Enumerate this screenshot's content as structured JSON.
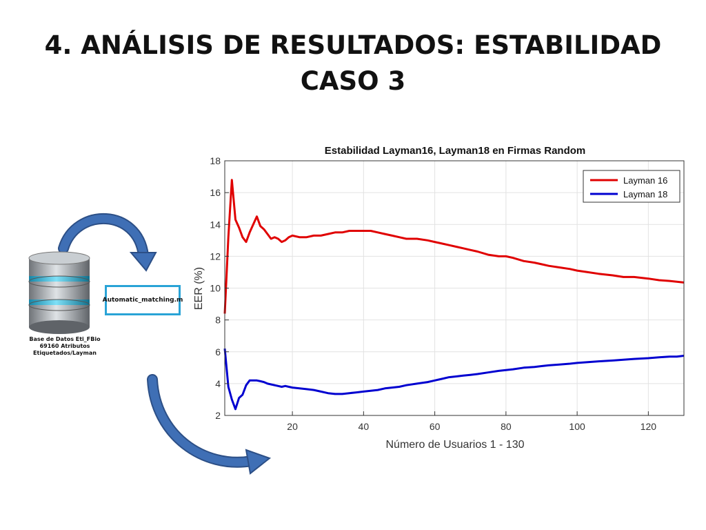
{
  "slide": {
    "title_line1": "4. ANÁLISIS DE RESULTADOS: ESTABILIDAD",
    "title_line2": "CASO 3"
  },
  "diagram": {
    "database_icon": "database-icon",
    "database_label_lines": [
      "Base de Datos Eti_FBio",
      "69160 Atributos",
      "Etiquetados/Layman"
    ],
    "script_box_label": "Automatic_matching.m",
    "arrow_color": "#3f6fb5",
    "box_border_color": "#29a3d6"
  },
  "chart_data": {
    "type": "line",
    "title": "Estabilidad Layman16, Layman18 en Firmas Random",
    "xlabel": "Número de Usuarios 1 - 130",
    "ylabel": "EER (%)",
    "xlim": [
      1,
      130
    ],
    "ylim": [
      2,
      18
    ],
    "xticks": [
      20,
      40,
      60,
      80,
      100,
      120
    ],
    "yticks": [
      2,
      4,
      6,
      8,
      10,
      12,
      14,
      16,
      18
    ],
    "grid": true,
    "legend_position": "top-right",
    "series": [
      {
        "name": "Layman 16",
        "color": "#e00000",
        "x": [
          1,
          2,
          3,
          4,
          5,
          6,
          7,
          8,
          9,
          10,
          11,
          12,
          13,
          14,
          15,
          16,
          17,
          18,
          19,
          20,
          22,
          24,
          26,
          28,
          30,
          32,
          34,
          36,
          38,
          40,
          42,
          44,
          46,
          48,
          50,
          52,
          55,
          58,
          60,
          62,
          64,
          66,
          68,
          70,
          72,
          75,
          78,
          80,
          82,
          85,
          88,
          90,
          92,
          95,
          98,
          100,
          103,
          106,
          110,
          113,
          116,
          120,
          123,
          126,
          128,
          130
        ],
        "values": [
          8.4,
          13.2,
          16.8,
          14.3,
          13.8,
          13.2,
          12.9,
          13.5,
          14.0,
          14.5,
          13.9,
          13.7,
          13.4,
          13.1,
          13.2,
          13.1,
          12.9,
          13.0,
          13.2,
          13.3,
          13.2,
          13.2,
          13.3,
          13.3,
          13.4,
          13.5,
          13.5,
          13.6,
          13.6,
          13.6,
          13.6,
          13.5,
          13.4,
          13.3,
          13.2,
          13.1,
          13.1,
          13.0,
          12.9,
          12.8,
          12.7,
          12.6,
          12.5,
          12.4,
          12.3,
          12.1,
          12.0,
          12.0,
          11.9,
          11.7,
          11.6,
          11.5,
          11.4,
          11.3,
          11.2,
          11.1,
          11.0,
          10.9,
          10.8,
          10.7,
          10.7,
          10.6,
          10.5,
          10.45,
          10.4,
          10.35
        ]
      },
      {
        "name": "Layman 18",
        "color": "#0000d0",
        "x": [
          1,
          2,
          3,
          4,
          5,
          6,
          7,
          8,
          9,
          10,
          11,
          12,
          13,
          14,
          15,
          16,
          17,
          18,
          19,
          20,
          22,
          24,
          26,
          28,
          30,
          32,
          34,
          36,
          38,
          40,
          42,
          44,
          46,
          48,
          50,
          52,
          55,
          58,
          60,
          62,
          64,
          66,
          68,
          70,
          72,
          75,
          78,
          80,
          82,
          85,
          88,
          90,
          92,
          95,
          98,
          100,
          103,
          106,
          110,
          113,
          116,
          120,
          123,
          126,
          128,
          130
        ],
        "values": [
          6.2,
          3.8,
          3.0,
          2.4,
          3.1,
          3.3,
          3.9,
          4.2,
          4.2,
          4.2,
          4.15,
          4.1,
          4.0,
          3.95,
          3.9,
          3.85,
          3.8,
          3.85,
          3.8,
          3.75,
          3.7,
          3.65,
          3.6,
          3.5,
          3.4,
          3.35,
          3.35,
          3.4,
          3.45,
          3.5,
          3.55,
          3.6,
          3.7,
          3.75,
          3.8,
          3.9,
          4.0,
          4.1,
          4.2,
          4.3,
          4.4,
          4.45,
          4.5,
          4.55,
          4.6,
          4.7,
          4.8,
          4.85,
          4.9,
          5.0,
          5.05,
          5.1,
          5.15,
          5.2,
          5.25,
          5.3,
          5.35,
          5.4,
          5.45,
          5.5,
          5.55,
          5.6,
          5.65,
          5.7,
          5.7,
          5.75
        ]
      }
    ]
  }
}
